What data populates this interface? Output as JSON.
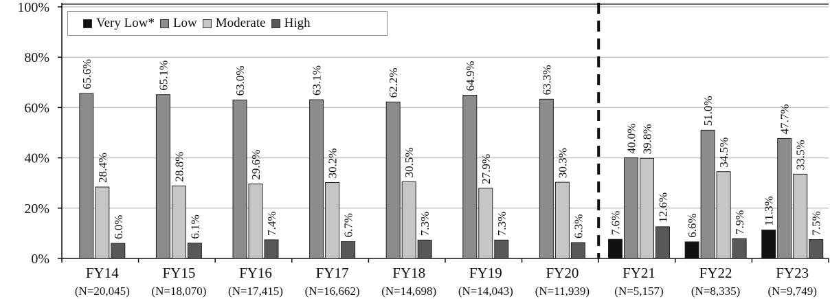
{
  "chart_data": {
    "type": "bar",
    "ylabel": "",
    "ylim": [
      0,
      100
    ],
    "y_ticks": [
      "0%",
      "20%",
      "40%",
      "60%",
      "80%",
      "100%"
    ],
    "categories": [
      "FY14",
      "FY15",
      "FY16",
      "FY17",
      "FY18",
      "FY19",
      "FY20",
      "FY21",
      "FY22",
      "FY23"
    ],
    "category_sublabels": [
      "(N=20,045)",
      "(N=18,070)",
      "(N=17,415)",
      "(N=16,662)",
      "(N=14,698)",
      "(N=14,043)",
      "(N=11,939)",
      "(N=5,157)",
      "(N=8,335)",
      "(N=9,749)"
    ],
    "series": [
      {
        "name": "Very Low*",
        "color": "#111111",
        "values": [
          null,
          null,
          null,
          null,
          null,
          null,
          null,
          7.6,
          6.6,
          11.3
        ],
        "labels": [
          null,
          null,
          null,
          null,
          null,
          null,
          null,
          "7.6%",
          "6.6%",
          "11.3%"
        ]
      },
      {
        "name": "Low",
        "color": "#8c8c8c",
        "values": [
          65.6,
          65.1,
          63.0,
          63.1,
          62.2,
          64.9,
          63.3,
          40.0,
          51.0,
          47.7
        ],
        "labels": [
          "65.6%",
          "65.1%",
          "63.0%",
          "63.1%",
          "62.2%",
          "64.9%",
          "63.3%",
          "40.0%",
          "51.0%",
          "47.7%"
        ]
      },
      {
        "name": "Moderate",
        "color": "#c6c6c6",
        "values": [
          28.4,
          28.8,
          29.6,
          30.2,
          30.5,
          27.9,
          30.3,
          39.8,
          34.5,
          33.5
        ],
        "labels": [
          "28.4%",
          "28.8%",
          "29.6%",
          "30.2%",
          "30.5%",
          "27.9%",
          "30.3%",
          "39.8%",
          "34.5%",
          "33.5%"
        ]
      },
      {
        "name": "High",
        "color": "#585858",
        "values": [
          6.0,
          6.1,
          7.4,
          6.7,
          7.3,
          7.3,
          6.3,
          12.6,
          7.9,
          7.5
        ],
        "labels": [
          "6.0%",
          "6.1%",
          "7.4%",
          "6.7%",
          "7.3%",
          "7.3%",
          "6.3%",
          "12.6%",
          "7.9%",
          "7.5%"
        ]
      }
    ],
    "grid": true,
    "legend_placement": "top-left",
    "divider_after_category": "FY20"
  }
}
